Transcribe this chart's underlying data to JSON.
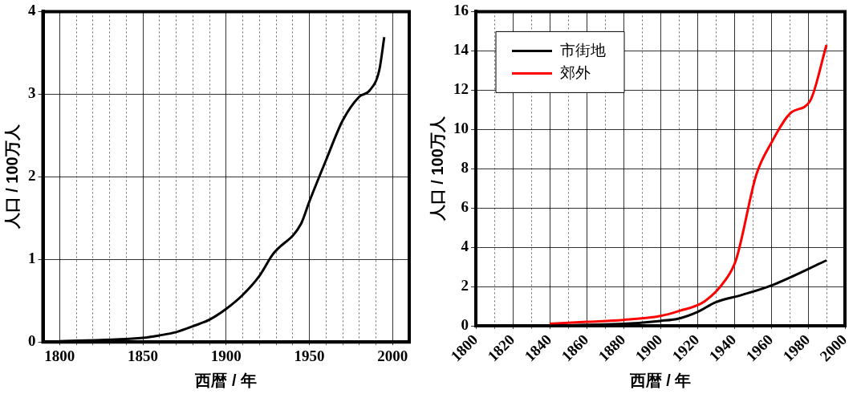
{
  "chart_data": [
    {
      "type": "line",
      "xlabel": "西暦 / 年",
      "ylabel": "人口 / 100万人",
      "xlim": [
        1790,
        2010
      ],
      "ylim": [
        0,
        4
      ],
      "xticks": [
        1800,
        {
          "value": 1810,
          "label": null
        },
        {
          "value": 1820,
          "label": null
        },
        {
          "value": 1830,
          "label": null
        },
        {
          "value": 1840,
          "label": null
        },
        1850,
        {
          "value": 1860,
          "label": null
        },
        {
          "value": 1870,
          "label": null
        },
        {
          "value": 1880,
          "label": null
        },
        {
          "value": 1890,
          "label": null
        },
        1900,
        {
          "value": 1910,
          "label": null
        },
        {
          "value": 1920,
          "label": null
        },
        {
          "value": 1930,
          "label": null
        },
        {
          "value": 1940,
          "label": null
        },
        1950,
        {
          "value": 1960,
          "label": null
        },
        {
          "value": 1970,
          "label": null
        },
        {
          "value": 1980,
          "label": null
        },
        {
          "value": 1990,
          "label": null
        },
        2000
      ],
      "yticks": [
        0,
        1,
        2,
        3,
        4
      ],
      "grid": true,
      "legend": false,
      "marker": "none",
      "line_style": "solid",
      "series": [
        {
          "color": "#000000",
          "x": [
            1800,
            1850,
            1860,
            1870,
            1880,
            1890,
            1900,
            1910,
            1920,
            1928,
            1945,
            1950,
            1960,
            1970,
            1980,
            1986,
            1992,
            1995
          ],
          "values": [
            0.01,
            0.05,
            0.08,
            0.12,
            0.19,
            0.27,
            0.4,
            0.57,
            0.8,
            1.06,
            1.43,
            1.7,
            2.2,
            2.68,
            2.97,
            3.04,
            3.29,
            3.69
          ]
        }
      ]
    },
    {
      "type": "line",
      "xlabel": "西暦 / 年",
      "ylabel": "人口 / 100万人",
      "xlim": [
        1800,
        2000
      ],
      "ylim": [
        0,
        16
      ],
      "xticks": [
        1800,
        {
          "value": 1810,
          "label": null
        },
        1820,
        {
          "value": 1830,
          "label": null
        },
        1840,
        {
          "value": 1850,
          "label": null
        },
        1860,
        {
          "value": 1870,
          "label": null
        },
        1880,
        {
          "value": 1890,
          "label": null
        },
        1900,
        {
          "value": 1910,
          "label": null
        },
        1920,
        {
          "value": 1930,
          "label": null
        },
        1940,
        {
          "value": 1950,
          "label": null
        },
        1960,
        {
          "value": 1970,
          "label": null
        },
        1980,
        {
          "value": 1990,
          "label": null
        },
        2000
      ],
      "yticks": [
        0,
        2,
        4,
        6,
        8,
        10,
        12,
        14,
        16
      ],
      "grid": true,
      "legend": "top left",
      "marker": "none",
      "line_style": "solid",
      "series": [
        {
          "name": "市街地",
          "color": "#000000",
          "x": [
            1840,
            1860,
            1880,
            1900,
            1910,
            1920,
            1930,
            1944,
            1960,
            1990
          ],
          "values": [
            0,
            0.05,
            0.1,
            0.25,
            0.37,
            0.7,
            1.2,
            1.57,
            2.05,
            3.33
          ]
        },
        {
          "name": "郊外",
          "color": "#ff0000",
          "x": [
            1840,
            1860,
            1880,
            1900,
            1910,
            1924,
            1935,
            1941,
            1952,
            1960,
            1971,
            1981,
            1990
          ],
          "values": [
            0.1,
            0.2,
            0.3,
            0.5,
            0.75,
            1.25,
            2.3,
            3.36,
            7.7,
            9.3,
            10.87,
            11.43,
            14.3
          ]
        }
      ]
    }
  ]
}
